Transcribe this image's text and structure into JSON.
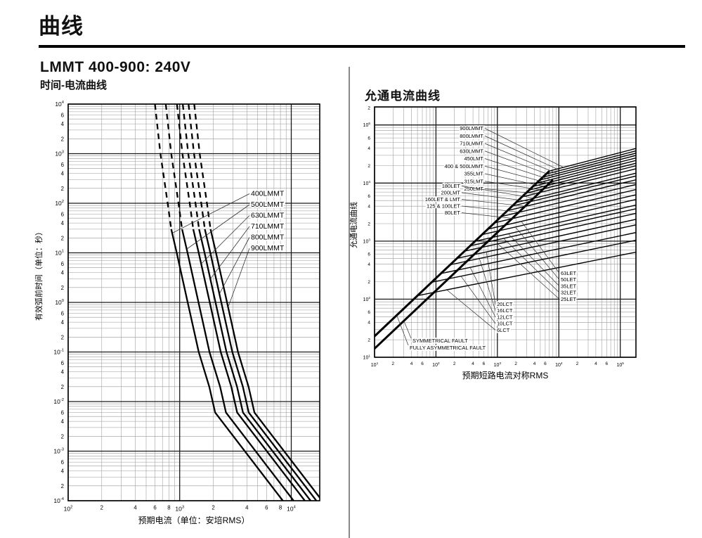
{
  "page": {
    "title": "曲线"
  },
  "left_section": {
    "heading": "LMMT 400-900: 240V",
    "subheading": "时间-电流曲线"
  },
  "right_section": {
    "heading": "允通电流曲线"
  },
  "chart_data": [
    {
      "type": "line",
      "title": "时间-电流曲线",
      "xlabel": "预期电流（单位：安培RMS）",
      "ylabel": "有效弧前时间（单位：秒）",
      "xscale": "log",
      "yscale": "log",
      "xlim": [
        100,
        18000
      ],
      "ylim": [
        0.0001,
        10000
      ],
      "x_sub_ticks": [
        2,
        4,
        6,
        8
      ],
      "y_sub_ticks": [
        2,
        4,
        6
      ],
      "grid": true,
      "legend_position": "callouts-right",
      "series": [
        {
          "name": "400LMMT",
          "dashed": [
            [
              600,
              10000
            ],
            [
              672,
              1000
            ],
            [
              780,
              100
            ],
            [
              840,
              30
            ]
          ],
          "solid": [
            [
              840,
              30
            ],
            [
              940,
              10
            ],
            [
              1180,
              1
            ],
            [
              1480,
              0.1
            ],
            [
              1840,
              0.02
            ],
            [
              2080,
              0.006
            ],
            [
              8400,
              0.0001
            ]
          ]
        },
        {
          "name": "500LMMT",
          "dashed": [
            [
              750,
              10000
            ],
            [
              840,
              1000
            ],
            [
              975,
              100
            ],
            [
              1050,
              30
            ]
          ],
          "solid": [
            [
              1050,
              30
            ],
            [
              1175,
              10
            ],
            [
              1475,
              1
            ],
            [
              1850,
              0.1
            ],
            [
              2300,
              0.02
            ],
            [
              2600,
              0.006
            ],
            [
              10500,
              0.0001
            ]
          ]
        },
        {
          "name": "630LMMT",
          "dashed": [
            [
              945,
              10000
            ],
            [
              1058,
              1000
            ],
            [
              1229,
              100
            ],
            [
              1323,
              30
            ]
          ],
          "solid": [
            [
              1323,
              30
            ],
            [
              1481,
              10
            ],
            [
              1859,
              1
            ],
            [
              2331,
              0.1
            ],
            [
              2898,
              0.02
            ],
            [
              3276,
              0.006
            ],
            [
              13230,
              0.0001
            ]
          ]
        },
        {
          "name": "710LMMT",
          "dashed": [
            [
              1065,
              10000
            ],
            [
              1193,
              1000
            ],
            [
              1385,
              100
            ],
            [
              1491,
              30
            ]
          ],
          "solid": [
            [
              1491,
              30
            ],
            [
              1669,
              10
            ],
            [
              2095,
              1
            ],
            [
              2627,
              0.1
            ],
            [
              3266,
              0.02
            ],
            [
              3692,
              0.006
            ],
            [
              14910,
              0.0001
            ]
          ]
        },
        {
          "name": "800LMMT",
          "dashed": [
            [
              1200,
              10000
            ],
            [
              1344,
              1000
            ],
            [
              1560,
              100
            ],
            [
              1680,
              30
            ]
          ],
          "solid": [
            [
              1680,
              30
            ],
            [
              1880,
              10
            ],
            [
              2360,
              1
            ],
            [
              2960,
              0.1
            ],
            [
              3680,
              0.02
            ],
            [
              4160,
              0.006
            ],
            [
              16800,
              0.0001
            ]
          ]
        },
        {
          "name": "900LMMT",
          "dashed": [
            [
              1350,
              10000
            ],
            [
              1512,
              1000
            ],
            [
              1755,
              100
            ],
            [
              1890,
              30
            ]
          ],
          "solid": [
            [
              1890,
              30
            ],
            [
              2115,
              10
            ],
            [
              2655,
              1
            ],
            [
              3330,
              0.1
            ],
            [
              4140,
              0.02
            ],
            [
              4680,
              0.006
            ],
            [
              18900,
              0.0001
            ]
          ]
        }
      ],
      "callouts": [
        "400LMMT",
        "500LMMT",
        "630LMMT",
        "710LMMT",
        "800LMMT",
        "900LMMT"
      ]
    },
    {
      "type": "line",
      "title": "允通电流曲线",
      "xlabel": "预期短路电流对称RMS",
      "ylabel": "允通电流曲线",
      "xscale": "log",
      "yscale": "log",
      "xlim": [
        10,
        180000
      ],
      "ylim": [
        10,
        205000
      ],
      "x_sub_ticks": [
        2,
        4,
        6
      ],
      "y_sub_ticks": [
        2,
        4,
        6
      ],
      "grid": true,
      "legend_position": "callouts",
      "reference_lines": [
        {
          "name": "FULLY ASYMMETRICAL FAULT",
          "points": [
            [
              10,
              23
            ],
            [
              7000,
              16100
            ]
          ]
        },
        {
          "name": "SYMMETRICAL FAULT",
          "points": [
            [
              10,
              14.1
            ],
            [
              8000,
              11300
            ]
          ]
        }
      ],
      "series": [
        {
          "name": "900LMMT",
          "points": [
            [
              7000,
              16100
            ],
            [
              200000,
              40600
            ]
          ]
        },
        {
          "name": "800LMMT",
          "points": [
            [
              6200,
              14260
            ],
            [
              200000,
              36900
            ]
          ]
        },
        {
          "name": "710LMMT",
          "points": [
            [
              5500,
              12650
            ],
            [
              200000,
              33700
            ]
          ]
        },
        {
          "name": "630LMMT",
          "points": [
            [
              4900,
              11270
            ],
            [
              200000,
              30800
            ]
          ]
        },
        {
          "name": "450LMT",
          "points": [
            [
              4300,
              9890
            ],
            [
              200000,
              27800
            ]
          ]
        },
        {
          "name": "400 & 500LMMT",
          "points": [
            [
              3800,
              8740
            ],
            [
              200000,
              25200
            ]
          ]
        },
        {
          "name": "355LMT",
          "points": [
            [
              3300,
              7590
            ],
            [
              200000,
              22600
            ]
          ]
        },
        {
          "name": "315LMT",
          "points": [
            [
              2900,
              6670
            ],
            [
              200000,
              20400
            ]
          ]
        },
        {
          "name": "250LMT",
          "points": [
            [
              2500,
              5750
            ],
            [
              200000,
              18100
            ]
          ]
        },
        {
          "name": "180LET",
          "points": [
            [
              2000,
              4600
            ],
            [
              200000,
              15200
            ]
          ]
        },
        {
          "name": "200LMT",
          "points": [
            [
              1750,
              4030
            ],
            [
              200000,
              13600
            ]
          ]
        },
        {
          "name": "160LET & LMT",
          "points": [
            [
              1450,
              3340
            ],
            [
              200000,
              11700
            ]
          ]
        },
        {
          "name": "125 & 100LET",
          "points": [
            [
              1150,
              2650
            ],
            [
              200000,
              9700
            ]
          ]
        },
        {
          "name": "80LET",
          "points": [
            [
              900,
              2070
            ],
            [
              200000,
              7930
            ]
          ]
        },
        {
          "name": "63LET",
          "points": [
            [
              700,
              1610
            ],
            [
              200000,
              6450
            ]
          ]
        },
        {
          "name": "50LET",
          "points": [
            [
              560,
              1290
            ],
            [
              200000,
              5350
            ]
          ]
        },
        {
          "name": "35LET",
          "points": [
            [
              430,
              990
            ],
            [
              200000,
              4290
            ]
          ]
        },
        {
          "name": "32LET",
          "points": [
            [
              360,
              830
            ],
            [
              200000,
              3700
            ]
          ]
        },
        {
          "name": "25LET",
          "points": [
            [
              290,
              670
            ],
            [
              200000,
              3080
            ]
          ]
        },
        {
          "name": "20LCT",
          "points": [
            [
              220,
              506
            ],
            [
              200000,
              2430
            ]
          ]
        },
        {
          "name": "16LCT",
          "points": [
            [
              170,
              391
            ],
            [
              200000,
              1950
            ]
          ]
        },
        {
          "name": "12LCT",
          "points": [
            [
              120,
              276
            ],
            [
              200000,
              1440
            ]
          ]
        },
        {
          "name": "10LCT",
          "points": [
            [
              85,
              196
            ],
            [
              200000,
              1060
            ]
          ]
        },
        {
          "name": "6LCT",
          "points": [
            [
              50,
              115
            ],
            [
              200000,
              660
            ]
          ]
        }
      ],
      "callout_groups": [
        {
          "labels": [
            "900LMMT",
            "800LMMT",
            "710LMMT",
            "630LMMT",
            "450LMT",
            "400 & 500LMMT",
            "355LMT",
            "315LMT",
            "250LMT"
          ]
        },
        {
          "labels": [
            "180LET",
            "200LMT",
            "160LET & LMT",
            "125 & 100LET",
            "80LET"
          ]
        },
        {
          "labels": [
            "63LET",
            "50LET",
            "35LET",
            "32LET",
            "25LET"
          ]
        },
        {
          "labels": [
            "20LCT",
            "16LCT",
            "12LCT",
            "10LCT",
            "6LCT"
          ]
        }
      ],
      "fault_labels": [
        "SYMMETRICAL FAULT",
        "FULLY ASYMMETRICAL FAULT"
      ]
    }
  ],
  "colors": {
    "ink": "#000000",
    "grid_minor": "#999999",
    "grid_major": "#1a1a1a",
    "divider": "#888888"
  }
}
